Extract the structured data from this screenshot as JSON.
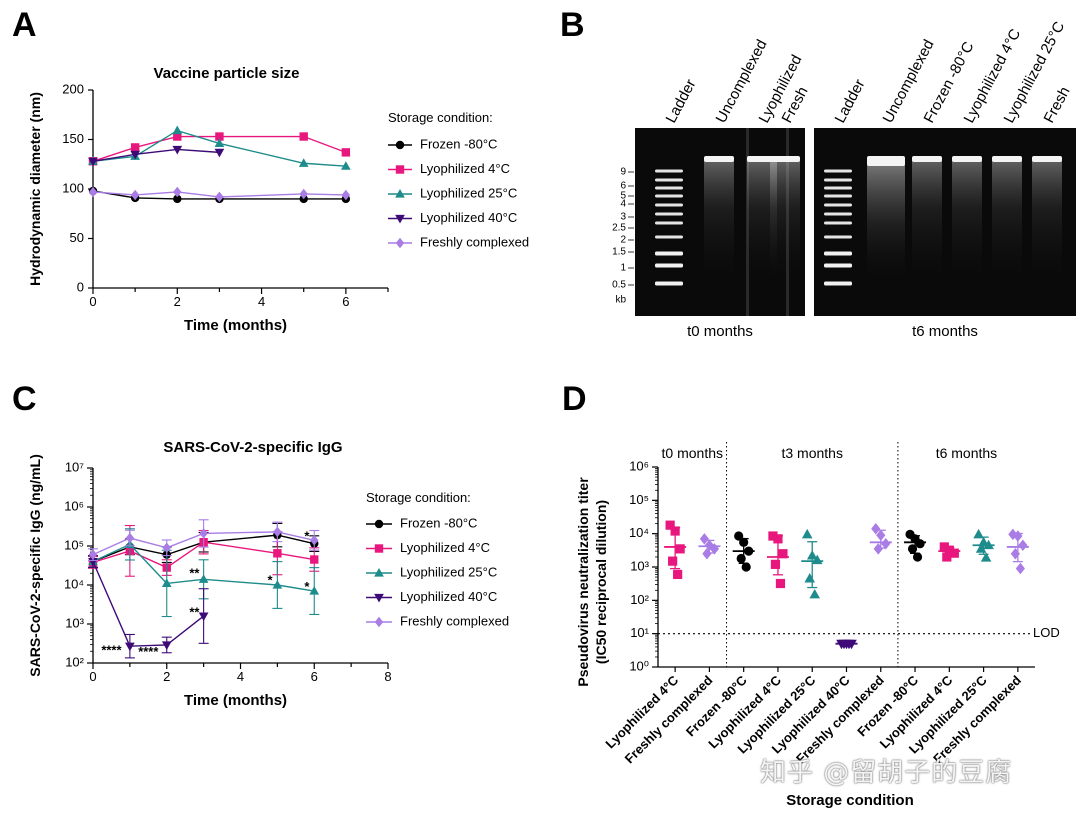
{
  "panels": {
    "A": "A",
    "B": "B",
    "C": "C",
    "D": "D"
  },
  "watermark": "知乎 @留胡子的豆腐",
  "chart_data": [
    {
      "id": "A",
      "type": "line",
      "title": "Vaccine particle size",
      "xlabel": "Time (months)",
      "ylabel": "Hydrodynamic diameter  (nm)",
      "xlim": [
        0,
        7
      ],
      "ylim": [
        0,
        200
      ],
      "xticks": [
        0,
        2,
        4,
        6
      ],
      "yticks": [
        0,
        50,
        100,
        150,
        200
      ],
      "legend_title": "Storage condition:",
      "legend_position": "right",
      "series": [
        {
          "name": "Frozen -80°C",
          "color": "#000000",
          "marker": "circle",
          "x": [
            0,
            1,
            2,
            3,
            5,
            6
          ],
          "y": [
            98,
            91,
            90,
            90,
            90,
            90
          ]
        },
        {
          "name": "Lyophilized 4°C",
          "color": "#e8177d",
          "marker": "square",
          "x": [
            0,
            1,
            2,
            3,
            5,
            6
          ],
          "y": [
            128,
            142,
            153,
            153,
            153,
            137
          ]
        },
        {
          "name": "Lyophilized 25°C",
          "color": "#1e8c8c",
          "marker": "triangle",
          "x": [
            0,
            1,
            2,
            3,
            5,
            6
          ],
          "y": [
            128,
            133,
            159,
            146,
            126,
            123
          ]
        },
        {
          "name": "Lyophilized 40°C",
          "color": "#3d0a78",
          "marker": "triangle-down",
          "x": [
            0,
            1,
            2,
            3
          ],
          "y": [
            128,
            135,
            140,
            137
          ]
        },
        {
          "name": "Freshly complexed",
          "color": "#a97ce6",
          "marker": "diamond",
          "x": [
            0,
            1,
            2,
            3,
            5,
            6
          ],
          "y": [
            97,
            94,
            97,
            92,
            95,
            94
          ]
        }
      ]
    },
    {
      "id": "B",
      "type": "gel",
      "gels": [
        {
          "caption": "t0 months",
          "lanes": [
            "Ladder",
            "Uncomplexed",
            "Lyophilized",
            "Fresh"
          ]
        },
        {
          "caption": "t6 months",
          "lanes": [
            "Ladder",
            "Uncomplexed",
            "Frozen -80°C",
            "Lyophilized 4°C",
            "Lyophilized 25°C",
            "Fresh"
          ]
        }
      ],
      "ladder_labels": [
        "9",
        "6",
        "5",
        "4",
        "3",
        "2.5",
        "2",
        "1.5",
        "1",
        "0.5",
        "kb"
      ]
    },
    {
      "id": "C",
      "type": "line",
      "title": "SARS-CoV-2-specific IgG",
      "xlabel": "Time (months)",
      "ylabel": "SARS-CoV-2-specific IgG (ng/mL)",
      "xlim": [
        0,
        8
      ],
      "ylim_log10": [
        2,
        7
      ],
      "xticks": [
        0,
        2,
        4,
        6,
        8
      ],
      "yticks": [
        "10²",
        "10³",
        "10⁴",
        "10⁵",
        "10⁶",
        "10⁷"
      ],
      "legend_title": "Storage condition:",
      "legend_position": "right",
      "series": [
        {
          "name": "Frozen -80°C",
          "color": "#000000",
          "marker": "circle",
          "x": [
            0,
            1,
            2,
            3,
            5,
            6
          ],
          "y": [
            40000,
            95000,
            60000,
            125000,
            190000,
            115000
          ],
          "err": [
            0.15,
            0.2,
            0.2,
            0.25,
            0.3,
            0.2
          ]
        },
        {
          "name": "Lyophilized 4°C",
          "color": "#e8177d",
          "marker": "square",
          "x": [
            0,
            1,
            2,
            3,
            5,
            6
          ],
          "y": [
            38000,
            75000,
            28000,
            125000,
            65000,
            45000
          ],
          "err": [
            0.15,
            0.65,
            0.2,
            0.3,
            0.55,
            0.3
          ]
        },
        {
          "name": "Lyophilized 25°C",
          "color": "#1e8c8c",
          "marker": "triangle",
          "x": [
            0,
            1,
            2,
            3,
            5,
            6
          ],
          "y": [
            40000,
            110000,
            11000,
            14000,
            10000,
            7000
          ],
          "err": [
            0.15,
            0.4,
            0.85,
            0.5,
            0.6,
            0.6
          ]
        },
        {
          "name": "Lyophilized 40°C",
          "color": "#3d0a78",
          "marker": "triangle-down",
          "x": [
            0,
            1,
            2,
            3
          ],
          "y": [
            40000,
            270,
            290,
            1600
          ],
          "err": [
            0.15,
            0.3,
            0.2,
            0.7
          ]
        },
        {
          "name": "Freshly complexed",
          "color": "#a97ce6",
          "marker": "diamond",
          "x": [
            0,
            1,
            2,
            3,
            5,
            6
          ],
          "y": [
            60000,
            160000,
            90000,
            210000,
            230000,
            140000
          ],
          "err": [
            0.15,
            0.2,
            0.2,
            0.35,
            0.25,
            0.25
          ]
        }
      ],
      "annotations": [
        {
          "text": "****",
          "x": 0.5,
          "y": 200
        },
        {
          "text": "****",
          "x": 1.5,
          "y": 185
        },
        {
          "text": "**",
          "x": 2.75,
          "y": 19000
        },
        {
          "text": "**",
          "x": 2.75,
          "y": 1900
        },
        {
          "text": "*",
          "x": 4.8,
          "y": 12500
        },
        {
          "text": "*",
          "x": 5.8,
          "y": 8500
        },
        {
          "text": "*",
          "x": 5.8,
          "y": 170000
        }
      ]
    },
    {
      "id": "D",
      "type": "scatter",
      "ylabel_line1": "Pseudovirus neutralization titer",
      "ylabel_line2": "(IC50 reciprocal dilution)",
      "xlabel": "Storage condition",
      "ylim_log10": [
        0,
        6
      ],
      "yticks": [
        "10⁰",
        "10¹",
        "10²",
        "10³",
        "10⁴",
        "10⁵",
        "10⁶"
      ],
      "lod": {
        "value": 10,
        "label": "LOD"
      },
      "groups": [
        {
          "label": "t0 months",
          "start": 0,
          "end": 2
        },
        {
          "label": "t3 months",
          "start": 2,
          "end": 7
        },
        {
          "label": "t6 months",
          "start": 7,
          "end": 11
        }
      ],
      "categories": [
        "Lyophilized 4°C",
        "Freshly complexed",
        "Frozen -80°C",
        "Lyophilized 4°C",
        "Lyophilized 25°C",
        "Lyophilized 40°C",
        "Freshly complexed",
        "Frozen -80°C",
        "Lyophilized 4°C",
        "Lyophilized 25°C",
        "Freshly complexed"
      ],
      "series": [
        {
          "category_index": 0,
          "color": "#e8177d",
          "marker": "square",
          "values": [
            18000,
            12000,
            3500,
            1500,
            600
          ],
          "mean": 4000
        },
        {
          "category_index": 1,
          "color": "#a97ce6",
          "marker": "diamond",
          "values": [
            7000,
            4500,
            3500,
            2500
          ],
          "mean": 4200
        },
        {
          "category_index": 2,
          "color": "#000000",
          "marker": "circle",
          "values": [
            8500,
            5500,
            3000,
            1800,
            1000
          ],
          "mean": 3000
        },
        {
          "category_index": 3,
          "color": "#e8177d",
          "marker": "square",
          "values": [
            8500,
            7000,
            2500,
            1200,
            320
          ],
          "mean": 2000
        },
        {
          "category_index": 4,
          "color": "#1e8c8c",
          "marker": "triangle",
          "values": [
            9500,
            2200,
            1600,
            450,
            150
          ],
          "mean": 1500
        },
        {
          "category_index": 5,
          "color": "#3d0a78",
          "marker": "triangle-down",
          "values": [
            5,
            5,
            5,
            5,
            5
          ],
          "mean": 5
        },
        {
          "category_index": 6,
          "color": "#a97ce6",
          "marker": "diamond",
          "values": [
            14000,
            9000,
            5000,
            3500
          ],
          "mean": 5500
        },
        {
          "category_index": 7,
          "color": "#000000",
          "marker": "circle",
          "values": [
            9500,
            7000,
            5000,
            3500,
            2000
          ],
          "mean": 5500
        },
        {
          "category_index": 8,
          "color": "#e8177d",
          "marker": "square",
          "values": [
            4000,
            3200,
            2600,
            2000
          ],
          "mean": 3000
        },
        {
          "category_index": 9,
          "color": "#1e8c8c",
          "marker": "triangle",
          "values": [
            9500,
            5500,
            4500,
            3500,
            1900
          ],
          "mean": 4500
        },
        {
          "category_index": 10,
          "color": "#a97ce6",
          "marker": "diamond",
          "values": [
            9500,
            8500,
            4500,
            2500,
            900
          ],
          "mean": 4000
        }
      ]
    }
  ]
}
